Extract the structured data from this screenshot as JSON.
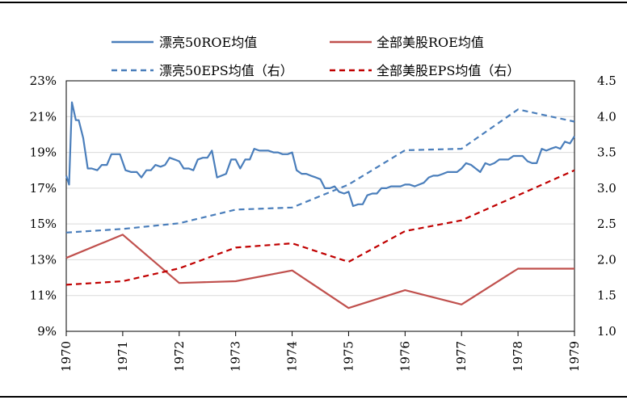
{
  "chart_data": {
    "type": "line",
    "legend": {
      "placement": "top",
      "entries": [
        {
          "label": "漂亮50ROE均值",
          "color": "#4a7ebb",
          "dash": "solid"
        },
        {
          "label": "全部美股ROE均值",
          "color": "#c0504d",
          "dash": "solid"
        },
        {
          "label": "漂亮50EPS均值（右）",
          "color": "#4a7ebb",
          "dash": "dash"
        },
        {
          "label": "全部美股EPS均值（右）",
          "color": "#c00000",
          "dash": "dash"
        }
      ]
    },
    "x_ticks": [
      "1970",
      "1971",
      "1972",
      "1973",
      "1974",
      "1975",
      "1976",
      "1977",
      "1978",
      "1979"
    ],
    "xlim": [
      1970,
      1979
    ],
    "y_left": {
      "ticks": [
        "9%",
        "11%",
        "13%",
        "15%",
        "17%",
        "19%",
        "21%",
        "23%"
      ],
      "ylim": [
        9,
        23
      ]
    },
    "y_right": {
      "ticks": [
        "1.0",
        "1.5",
        "2.0",
        "2.5",
        "3.0",
        "3.5",
        "4.0",
        "4.5"
      ],
      "ylim": [
        1.0,
        4.5
      ]
    },
    "grid": "horizontal",
    "series": [
      {
        "name": "漂亮50ROE均值",
        "axis": "left",
        "color": "#4a7ebb",
        "dash": "solid",
        "x": [
          1970.0,
          1970.05,
          1970.1,
          1970.17,
          1970.22,
          1970.3,
          1970.38,
          1970.45,
          1970.55,
          1970.63,
          1970.72,
          1970.8,
          1970.88,
          1970.95,
          1971.05,
          1971.15,
          1971.25,
          1971.33,
          1971.42,
          1971.5,
          1971.58,
          1971.67,
          1971.75,
          1971.83,
          1971.92,
          1972.0,
          1972.08,
          1972.17,
          1972.25,
          1972.33,
          1972.42,
          1972.5,
          1972.58,
          1972.67,
          1972.75,
          1972.83,
          1972.92,
          1973.0,
          1973.08,
          1973.17,
          1973.25,
          1973.33,
          1973.42,
          1973.5,
          1973.58,
          1973.67,
          1973.75,
          1973.83,
          1973.92,
          1974.0,
          1974.08,
          1974.17,
          1974.25,
          1974.33,
          1974.42,
          1974.5,
          1974.58,
          1974.67,
          1974.75,
          1974.83,
          1974.92,
          1975.0,
          1975.08,
          1975.17,
          1975.25,
          1975.33,
          1975.42,
          1975.5,
          1975.58,
          1975.67,
          1975.75,
          1975.83,
          1975.92,
          1976.0,
          1976.08,
          1976.17,
          1976.25,
          1976.33,
          1976.42,
          1976.5,
          1976.58,
          1976.67,
          1976.75,
          1976.83,
          1976.92,
          1977.0,
          1977.08,
          1977.17,
          1977.25,
          1977.33,
          1977.42,
          1977.5,
          1977.58,
          1977.67,
          1977.75,
          1977.83,
          1977.92,
          1978.0,
          1978.08,
          1978.17,
          1978.25,
          1978.33,
          1978.42,
          1978.5,
          1978.58,
          1978.67,
          1978.75,
          1978.83,
          1978.92,
          1979.0
        ],
        "values": [
          17.7,
          17.2,
          21.8,
          20.8,
          20.8,
          19.8,
          18.1,
          18.1,
          18.0,
          18.3,
          18.3,
          18.9,
          18.9,
          18.9,
          18.0,
          17.9,
          17.9,
          17.6,
          18.0,
          18.0,
          18.3,
          18.2,
          18.3,
          18.7,
          18.6,
          18.5,
          18.1,
          18.1,
          18.0,
          18.6,
          18.7,
          18.7,
          19.1,
          17.6,
          17.7,
          17.8,
          18.6,
          18.6,
          18.1,
          18.6,
          18.6,
          19.2,
          19.1,
          19.1,
          19.1,
          19.0,
          19.0,
          18.9,
          18.9,
          19.0,
          18.0,
          17.8,
          17.8,
          17.7,
          17.6,
          17.5,
          17.0,
          17.0,
          17.1,
          16.8,
          16.7,
          16.8,
          16.0,
          16.1,
          16.1,
          16.6,
          16.7,
          16.7,
          17.0,
          17.0,
          17.1,
          17.1,
          17.1,
          17.2,
          17.2,
          17.1,
          17.2,
          17.3,
          17.6,
          17.7,
          17.7,
          17.8,
          17.9,
          17.9,
          17.9,
          18.1,
          18.4,
          18.3,
          18.1,
          17.9,
          18.4,
          18.3,
          18.4,
          18.6,
          18.6,
          18.6,
          18.8,
          18.8,
          18.8,
          18.5,
          18.4,
          18.4,
          19.2,
          19.1,
          19.2,
          19.3,
          19.2,
          19.6,
          19.5,
          19.9
        ]
      },
      {
        "name": "全部美股ROE均值",
        "axis": "left",
        "color": "#c0504d",
        "dash": "solid",
        "x": [
          1970,
          1971,
          1972,
          1973,
          1974,
          1975,
          1976,
          1977,
          1978,
          1979
        ],
        "values": [
          13.1,
          14.4,
          11.7,
          11.8,
          12.4,
          10.3,
          11.3,
          10.5,
          12.5,
          12.5
        ]
      },
      {
        "name": "漂亮50EPS均值（右）",
        "axis": "right",
        "color": "#4a7ebb",
        "dash": "dash",
        "x": [
          1970,
          1971,
          1972,
          1973,
          1974,
          1975,
          1976,
          1977,
          1978,
          1979
        ],
        "values": [
          2.38,
          2.43,
          2.51,
          2.7,
          2.73,
          3.05,
          3.53,
          3.55,
          4.1,
          3.93
        ]
      },
      {
        "name": "全部美股EPS均值（右）",
        "axis": "right",
        "color": "#c00000",
        "dash": "dash",
        "x": [
          1970,
          1971,
          1972,
          1973,
          1974,
          1975,
          1976,
          1977,
          1978,
          1979
        ],
        "values": [
          1.65,
          1.7,
          1.88,
          2.17,
          2.23,
          1.97,
          2.4,
          2.55,
          2.9,
          3.25
        ]
      }
    ]
  }
}
